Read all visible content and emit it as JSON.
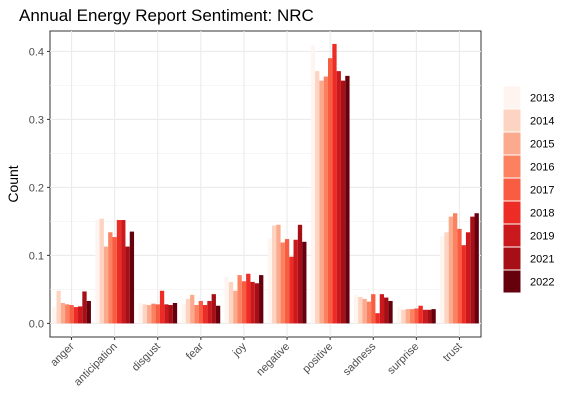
{
  "chart_data": {
    "type": "bar",
    "title": "Annual Energy Report Sentiment: NRC",
    "xlabel": "",
    "ylabel": "Count",
    "ylim": [
      -0.02,
      0.43
    ],
    "yticks": [
      0.0,
      0.1,
      0.2,
      0.3,
      0.4
    ],
    "ytick_labels": [
      "0.0",
      "0.1",
      "0.2",
      "0.3",
      "0.4"
    ],
    "grid": true,
    "legend_position": "right",
    "categories": [
      "anger",
      "anticipation",
      "disgust",
      "fear",
      "joy",
      "negative",
      "positive",
      "sadness",
      "surprise",
      "trust"
    ],
    "series": [
      {
        "name": "2013",
        "color": "#fff5f0",
        "values": [
          0.024,
          0.152,
          0.03,
          0.028,
          0.068,
          0.125,
          0.409,
          0.042,
          0.024,
          0.128
        ]
      },
      {
        "name": "2014",
        "color": "#fdd4c2",
        "values": [
          0.048,
          0.154,
          0.028,
          0.036,
          0.061,
          0.144,
          0.371,
          0.039,
          0.02,
          0.134
        ]
      },
      {
        "name": "2015",
        "color": "#fcaa8e",
        "values": [
          0.03,
          0.113,
          0.027,
          0.042,
          0.048,
          0.145,
          0.357,
          0.036,
          0.021,
          0.157
        ]
      },
      {
        "name": "2016",
        "color": "#fc8161",
        "values": [
          0.028,
          0.134,
          0.029,
          0.027,
          0.071,
          0.119,
          0.363,
          0.032,
          0.021,
          0.162
        ]
      },
      {
        "name": "2017",
        "color": "#f85d42",
        "values": [
          0.027,
          0.127,
          0.028,
          0.033,
          0.062,
          0.124,
          0.39,
          0.043,
          0.022,
          0.139
        ]
      },
      {
        "name": "2018",
        "color": "#ec2c25",
        "values": [
          0.024,
          0.152,
          0.048,
          0.027,
          0.073,
          0.098,
          0.411,
          0.015,
          0.026,
          0.115
        ]
      },
      {
        "name": "2019",
        "color": "#cb181d",
        "values": [
          0.025,
          0.152,
          0.028,
          0.033,
          0.061,
          0.123,
          0.371,
          0.043,
          0.02,
          0.134
        ]
      },
      {
        "name": "2021",
        "color": "#a50f15",
        "values": [
          0.047,
          0.113,
          0.027,
          0.043,
          0.059,
          0.145,
          0.357,
          0.038,
          0.02,
          0.157
        ]
      },
      {
        "name": "2022",
        "color": "#67000d",
        "values": [
          0.033,
          0.135,
          0.03,
          0.026,
          0.071,
          0.12,
          0.364,
          0.033,
          0.021,
          0.162
        ]
      }
    ]
  }
}
